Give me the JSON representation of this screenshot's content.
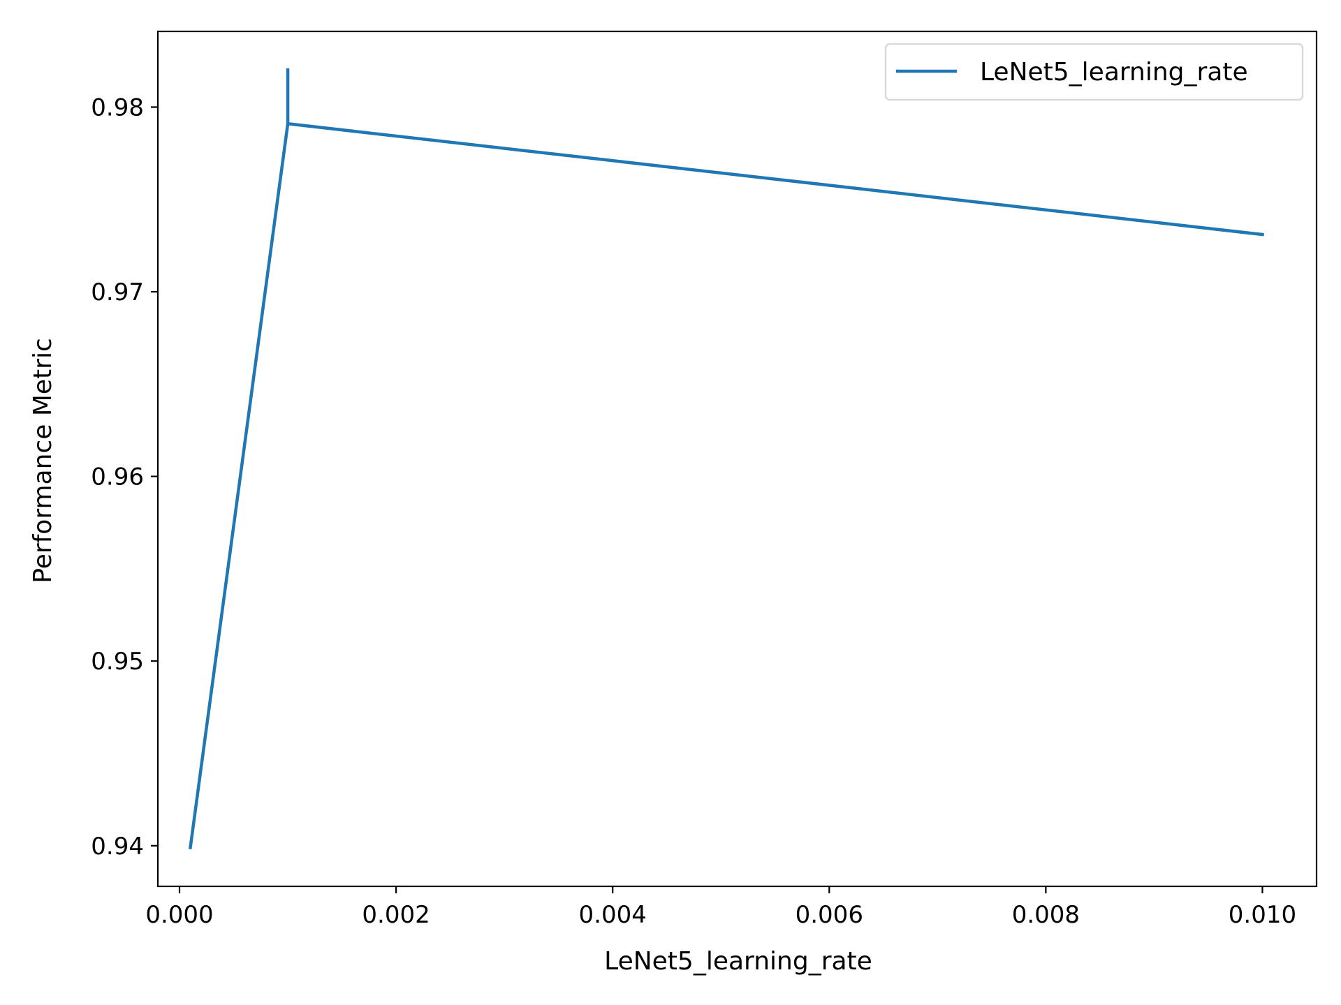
{
  "chart_data": {
    "type": "line",
    "title": "",
    "xlabel": "LeNet5_learning_rate",
    "ylabel": "Performance Metric",
    "xlim": [
      -0.0002,
      0.0105
    ],
    "ylim": [
      0.9378,
      0.9841
    ],
    "xticks": [
      0.0,
      0.002,
      0.004,
      0.006,
      0.008,
      0.01
    ],
    "xtick_labels": [
      "0.000",
      "0.002",
      "0.004",
      "0.006",
      "0.008",
      "0.010"
    ],
    "yticks": [
      0.94,
      0.95,
      0.96,
      0.97,
      0.98
    ],
    "ytick_labels": [
      "0.94",
      "0.95",
      "0.96",
      "0.97",
      "0.98"
    ],
    "grid": false,
    "legend_position": "top-right",
    "series": [
      {
        "name": "LeNet5_learning_rate",
        "color": "#1f77b4",
        "x": [
          0.0001,
          0.001,
          0.001,
          0.001,
          0.01
        ],
        "y": [
          0.9399,
          0.9791,
          0.9821,
          0.9791,
          0.9731
        ]
      }
    ]
  }
}
